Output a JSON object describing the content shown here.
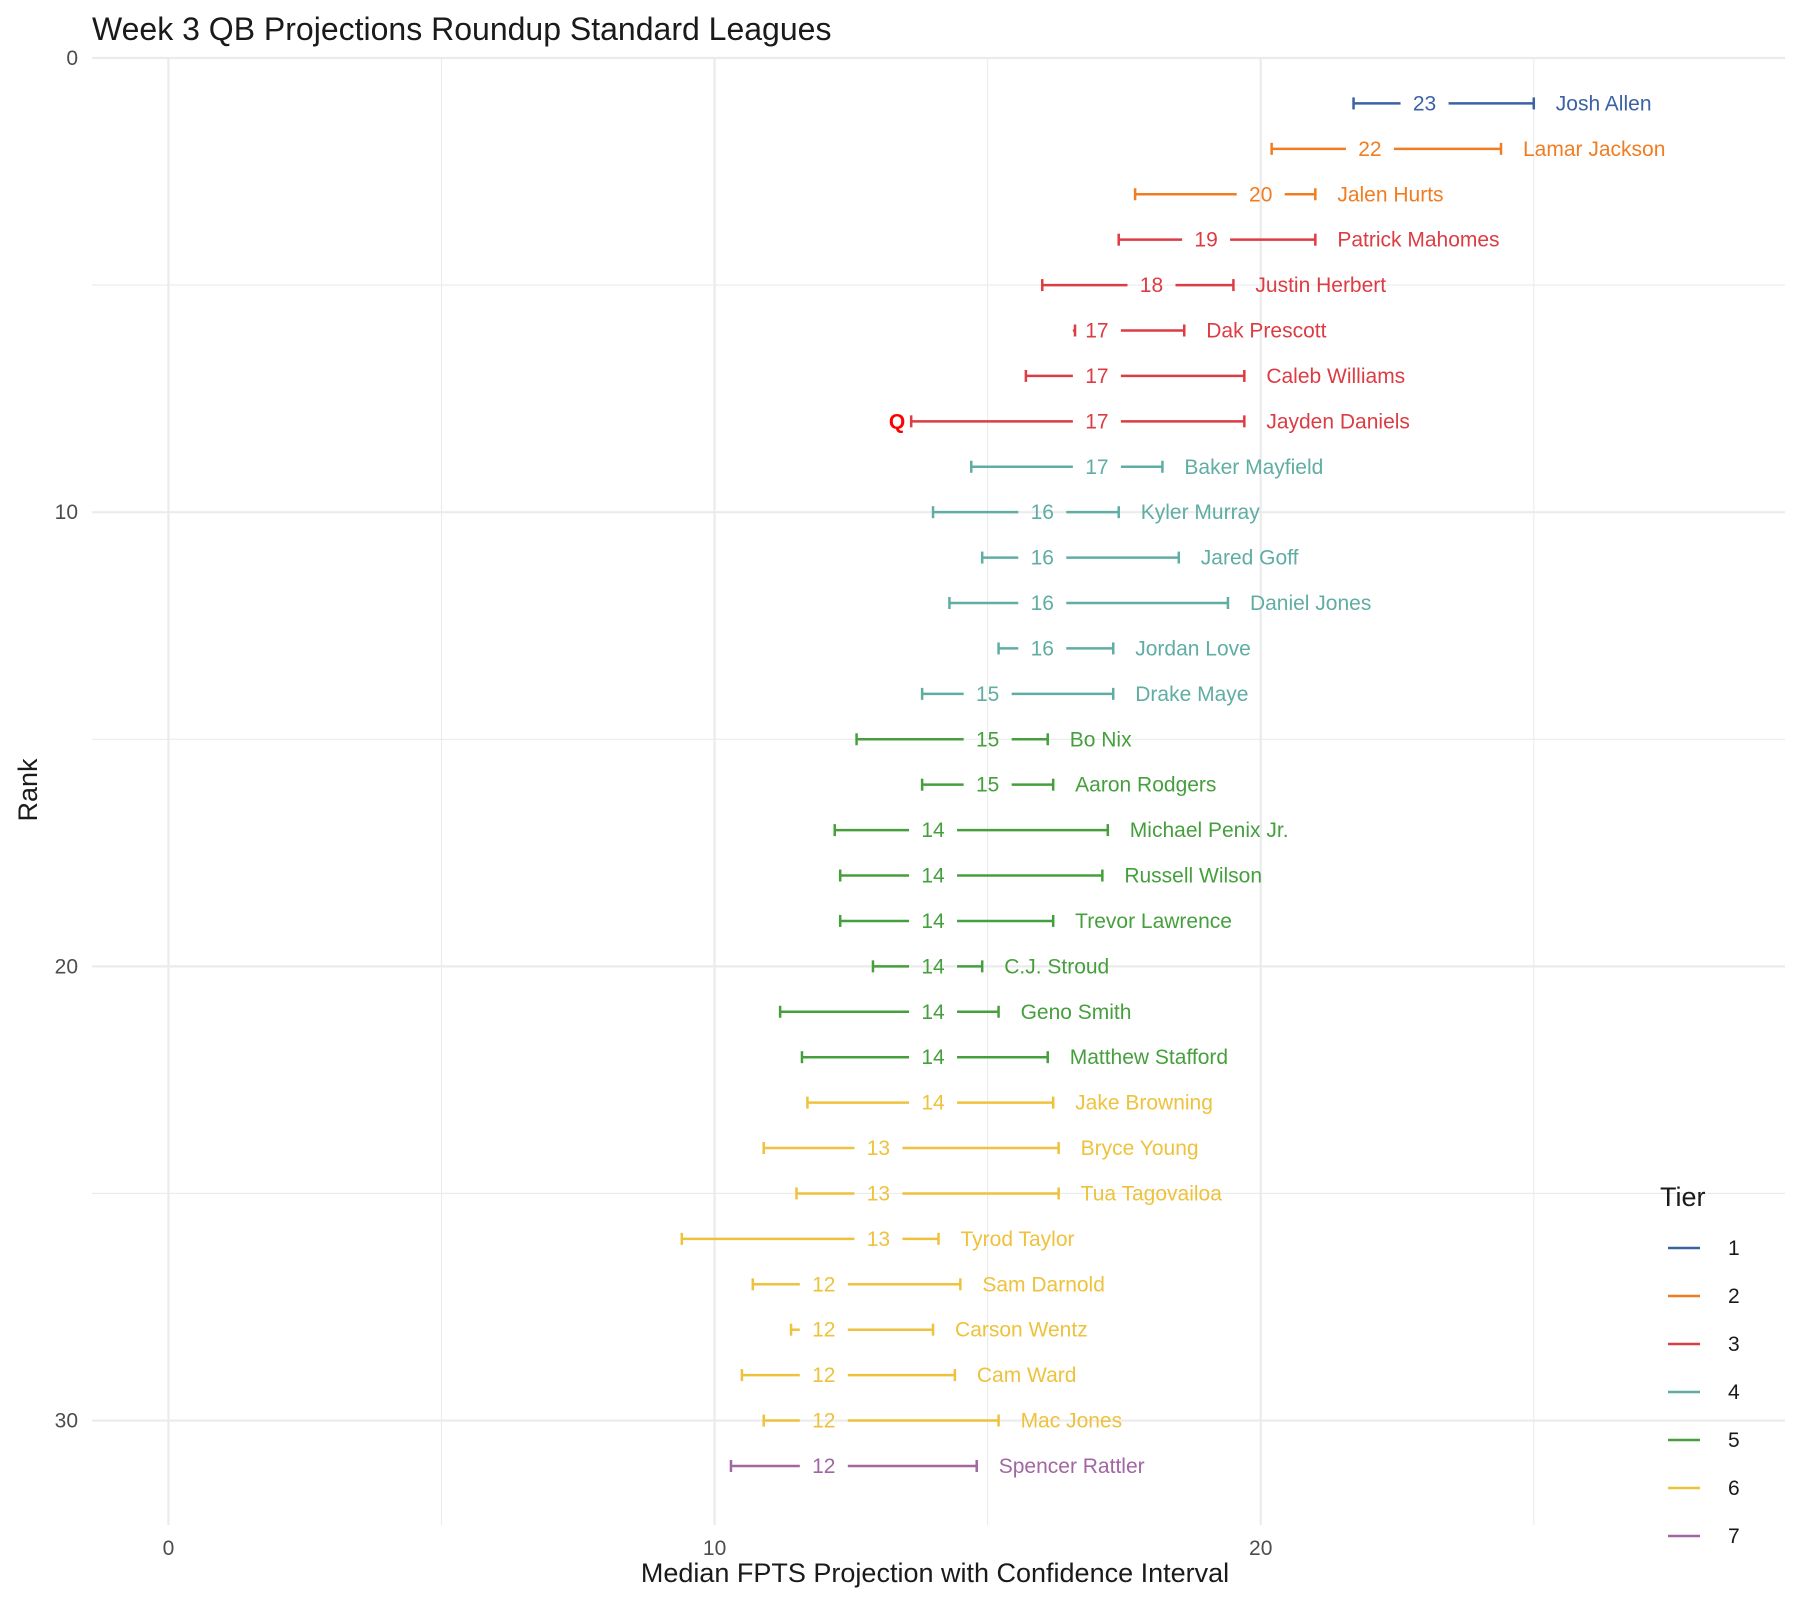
{
  "chart_data": {
    "type": "interval",
    "title": "Week 3 QB Projections Roundup Standard Leagues",
    "xlabel": "Median FPTS Projection with Confidence Interval",
    "ylabel": "Rank",
    "xlim": [
      -1.4,
      29.6
    ],
    "ylim": [
      0,
      32.3
    ],
    "x_ticks": [
      0,
      10,
      20
    ],
    "y_ticks": [
      0,
      10,
      20,
      30
    ],
    "legend": {
      "title": "Tier",
      "position": "right",
      "tiers": [
        "1",
        "2",
        "3",
        "4",
        "5",
        "6",
        "7"
      ]
    },
    "tier_colors": {
      "1": "#3a62a4",
      "2": "#f07d22",
      "3": "#dc3c43",
      "4": "#5fada3",
      "5": "#469f3d",
      "6": "#eec23c",
      "7": "#a266a2"
    },
    "flag_color": "#ff0000",
    "players": [
      {
        "rank": 1,
        "name": "Josh Allen",
        "tier": "1",
        "median": 23,
        "low": 21.7,
        "high": 25.0
      },
      {
        "rank": 2,
        "name": "Lamar Jackson",
        "tier": "2",
        "median": 22,
        "low": 20.2,
        "high": 24.4
      },
      {
        "rank": 3,
        "name": "Jalen Hurts",
        "tier": "2",
        "median": 20,
        "low": 17.7,
        "high": 21.0
      },
      {
        "rank": 4,
        "name": "Patrick Mahomes",
        "tier": "3",
        "median": 19,
        "low": 17.4,
        "high": 21.0
      },
      {
        "rank": 5,
        "name": "Justin Herbert",
        "tier": "3",
        "median": 18,
        "low": 16.0,
        "high": 19.5
      },
      {
        "rank": 6,
        "name": "Dak Prescott",
        "tier": "3",
        "median": 17,
        "low": 16.6,
        "high": 18.6
      },
      {
        "rank": 7,
        "name": "Caleb Williams",
        "tier": "3",
        "median": 17,
        "low": 15.7,
        "high": 19.7
      },
      {
        "rank": 8,
        "name": "Jayden Daniels",
        "tier": "3",
        "median": 17,
        "low": 13.6,
        "high": 19.7,
        "flag": "Q"
      },
      {
        "rank": 9,
        "name": "Baker Mayfield",
        "tier": "4",
        "median": 17,
        "low": 14.7,
        "high": 18.2
      },
      {
        "rank": 10,
        "name": "Kyler Murray",
        "tier": "4",
        "median": 16,
        "low": 14.0,
        "high": 17.4
      },
      {
        "rank": 11,
        "name": "Jared Goff",
        "tier": "4",
        "median": 16,
        "low": 14.9,
        "high": 18.5
      },
      {
        "rank": 12,
        "name": "Daniel Jones",
        "tier": "4",
        "median": 16,
        "low": 14.3,
        "high": 19.4
      },
      {
        "rank": 13,
        "name": "Jordan Love",
        "tier": "4",
        "median": 16,
        "low": 15.2,
        "high": 17.3
      },
      {
        "rank": 14,
        "name": "Drake Maye",
        "tier": "4",
        "median": 15,
        "low": 13.8,
        "high": 17.3
      },
      {
        "rank": 15,
        "name": "Bo Nix",
        "tier": "5",
        "median": 15,
        "low": 12.6,
        "high": 16.1
      },
      {
        "rank": 16,
        "name": "Aaron Rodgers",
        "tier": "5",
        "median": 15,
        "low": 13.8,
        "high": 16.2
      },
      {
        "rank": 17,
        "name": "Michael Penix Jr.",
        "tier": "5",
        "median": 14,
        "low": 12.2,
        "high": 17.2
      },
      {
        "rank": 18,
        "name": "Russell Wilson",
        "tier": "5",
        "median": 14,
        "low": 12.3,
        "high": 17.1
      },
      {
        "rank": 19,
        "name": "Trevor Lawrence",
        "tier": "5",
        "median": 14,
        "low": 12.3,
        "high": 16.2
      },
      {
        "rank": 20,
        "name": "C.J. Stroud",
        "tier": "5",
        "median": 14,
        "low": 12.9,
        "high": 14.9
      },
      {
        "rank": 21,
        "name": "Geno Smith",
        "tier": "5",
        "median": 14,
        "low": 11.2,
        "high": 15.2
      },
      {
        "rank": 22,
        "name": "Matthew Stafford",
        "tier": "5",
        "median": 14,
        "low": 11.6,
        "high": 16.1
      },
      {
        "rank": 23,
        "name": "Jake Browning",
        "tier": "6",
        "median": 14,
        "low": 11.7,
        "high": 16.2
      },
      {
        "rank": 24,
        "name": "Bryce Young",
        "tier": "6",
        "median": 13,
        "low": 10.9,
        "high": 16.3
      },
      {
        "rank": 25,
        "name": "Tua Tagovailoa",
        "tier": "6",
        "median": 13,
        "low": 11.5,
        "high": 16.3
      },
      {
        "rank": 26,
        "name": "Tyrod Taylor",
        "tier": "6",
        "median": 13,
        "low": 9.4,
        "high": 14.1
      },
      {
        "rank": 27,
        "name": "Sam Darnold",
        "tier": "6",
        "median": 12,
        "low": 10.7,
        "high": 14.5
      },
      {
        "rank": 28,
        "name": "Carson Wentz",
        "tier": "6",
        "median": 12,
        "low": 11.4,
        "high": 14.0
      },
      {
        "rank": 29,
        "name": "Cam Ward",
        "tier": "6",
        "median": 12,
        "low": 10.5,
        "high": 14.4
      },
      {
        "rank": 30,
        "name": "Mac Jones",
        "tier": "6",
        "median": 12,
        "low": 10.9,
        "high": 15.2
      },
      {
        "rank": 31,
        "name": "Spencer Rattler",
        "tier": "7",
        "median": 12,
        "low": 10.3,
        "high": 14.8
      }
    ]
  }
}
